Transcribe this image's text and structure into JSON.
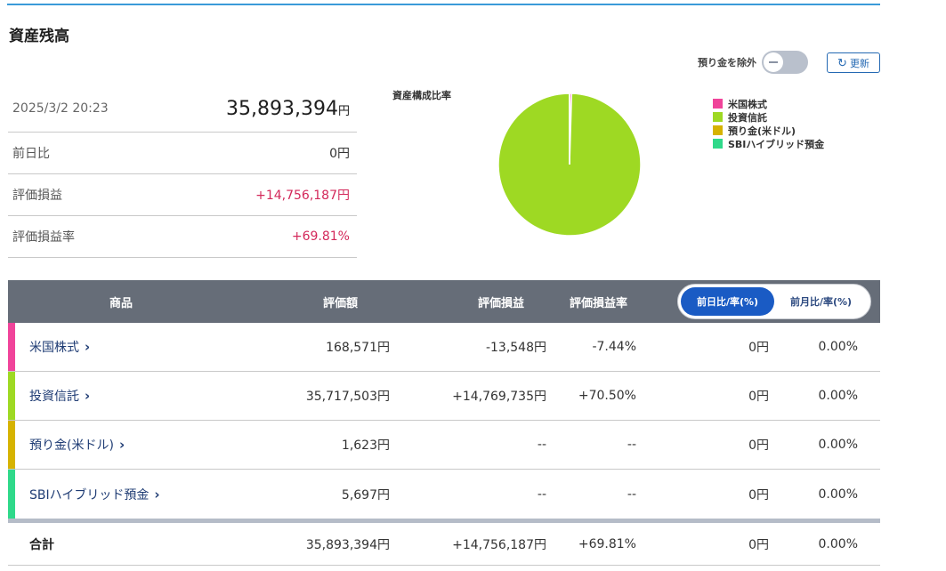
{
  "page": {
    "title": "資産残高"
  },
  "controls": {
    "exclude_deposit_label": "預り金を除外",
    "refresh_label": "更新"
  },
  "summary": {
    "datetime": "2025/3/2 20:23",
    "total_value": "35,893,394",
    "total_unit": "円",
    "rows": [
      {
        "label": "前日比",
        "value": "0円"
      },
      {
        "label": "評価損益",
        "value": "+14,756,187円"
      },
      {
        "label": "評価損益率",
        "value": "+69.81%"
      }
    ]
  },
  "chart_data": {
    "type": "pie",
    "title": "資産構成比率",
    "categories": [
      "米国株式",
      "投資信託",
      "預り金(米ドル)",
      "SBIハイブリッド預金"
    ],
    "values": [
      168571,
      35717503,
      1623,
      5697
    ],
    "colors": [
      "#f0449a",
      "#9ed923",
      "#d6b300",
      "#2fd98a"
    ],
    "legend": "right"
  },
  "table": {
    "headers": {
      "product": "商品",
      "amount": "評価額",
      "pl": "評価損益",
      "rate": "評価損益率"
    },
    "period": {
      "day": "前日比/率(%)",
      "month": "前月比/率(%)"
    },
    "rows": [
      {
        "name": "米国株式",
        "color": "#f0449a",
        "amount": "168,571円",
        "pl": "-13,548円",
        "rate": "-7.44%",
        "day": "0円",
        "dayrate": "0.00%"
      },
      {
        "name": "投資信託",
        "color": "#9ed923",
        "amount": "35,717,503円",
        "pl": "+14,769,735円",
        "rate": "+70.50%",
        "day": "0円",
        "dayrate": "0.00%"
      },
      {
        "name": "預り金(米ドル)",
        "color": "#d6b300",
        "amount": "1,623円",
        "pl": "--",
        "rate": "--",
        "day": "0円",
        "dayrate": "0.00%"
      },
      {
        "name": "SBIハイブリッド預金",
        "color": "#2fd98a",
        "amount": "5,697円",
        "pl": "--",
        "rate": "--",
        "day": "0円",
        "dayrate": "0.00%"
      }
    ],
    "total": {
      "name": "合計",
      "amount": "35,893,394円",
      "pl": "+14,756,187円",
      "rate": "+69.81%",
      "day": "0円",
      "dayrate": "0.00%"
    }
  }
}
